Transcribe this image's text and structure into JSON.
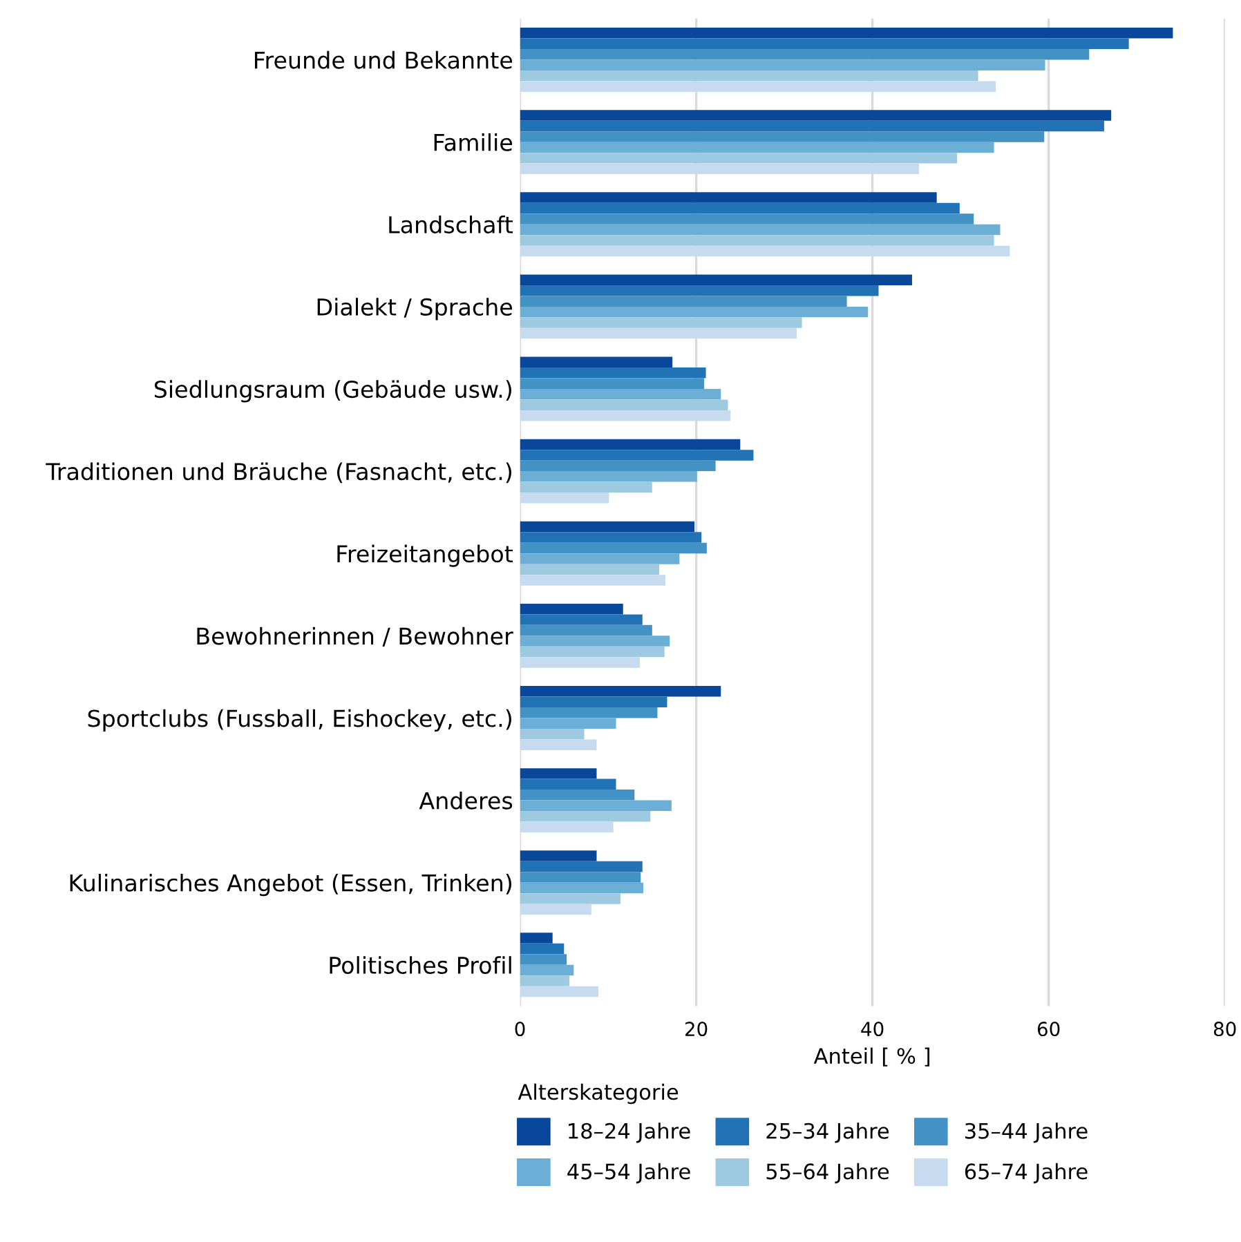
{
  "chart_data": {
    "type": "bar",
    "orientation": "horizontal",
    "xlabel": "Anteil [ % ]",
    "legend_title": "Alterskategorie",
    "legend": "bottom",
    "grid": "x",
    "categories": [
      "Freunde und Bekannte",
      "Familie",
      "Landschaft",
      "Dialekt / Sprache",
      "Siedlungsraum (Gebäude usw.)",
      "Traditionen und Bräuche (Fasnacht, etc.)",
      "Freizeitangebot",
      "Bewohnerinnen / Bewohner",
      "Sportclubs (Fussball, Eishockey, etc.)",
      "Anderes",
      "Kulinarisches Angebot (Essen, Trinken)",
      "Politisches Profil"
    ],
    "xlim": [
      0,
      80
    ],
    "xticks": [
      0,
      20,
      40,
      60,
      80
    ],
    "series": [
      {
        "name": "18–24 Jahre",
        "color": "#08479a",
        "values": [
          74.1,
          67.1,
          47.3,
          44.5,
          17.3,
          25.0,
          19.8,
          11.7,
          22.8,
          8.7,
          8.7,
          3.7
        ]
      },
      {
        "name": "25–34 Jahre",
        "color": "#2272b6",
        "values": [
          69.1,
          66.3,
          49.9,
          40.7,
          21.1,
          26.5,
          20.6,
          13.9,
          16.7,
          10.9,
          13.9,
          5.0
        ]
      },
      {
        "name": "35–44 Jahre",
        "color": "#4392c6",
        "values": [
          64.6,
          59.5,
          51.5,
          37.1,
          20.9,
          22.2,
          21.2,
          15.0,
          15.6,
          13.0,
          13.7,
          5.3
        ]
      },
      {
        "name": "45–54 Jahre",
        "color": "#6baed6",
        "values": [
          59.6,
          53.8,
          54.5,
          39.5,
          22.8,
          20.1,
          18.1,
          17.0,
          10.9,
          17.2,
          14.0,
          6.1
        ]
      },
      {
        "name": "55–64 Jahre",
        "color": "#9ecae1",
        "values": [
          52.0,
          49.6,
          53.8,
          32.0,
          23.6,
          15.0,
          15.8,
          16.4,
          7.3,
          14.8,
          11.4,
          5.6
        ]
      },
      {
        "name": "65–74 Jahre",
        "color": "#c6dbef",
        "values": [
          54.0,
          45.3,
          55.6,
          31.4,
          23.9,
          10.1,
          16.5,
          13.6,
          8.7,
          10.6,
          8.1,
          8.9
        ]
      }
    ]
  }
}
